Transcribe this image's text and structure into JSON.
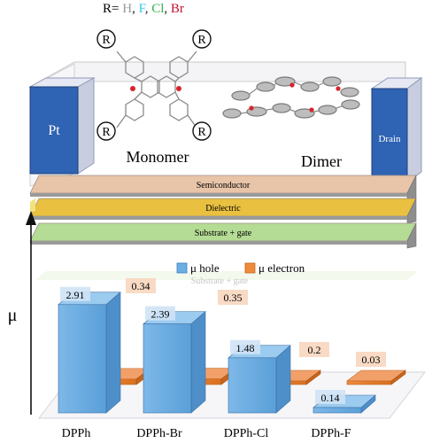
{
  "header": {
    "prefix": "R= ",
    "substituents": [
      {
        "text": "H",
        "color": "#9a9a9a"
      },
      {
        "text": ", ",
        "color": "#222222"
      },
      {
        "text": "F",
        "color": "#33c3f0"
      },
      {
        "text": ", ",
        "color": "#222222"
      },
      {
        "text": "Cl",
        "color": "#35b44a"
      },
      {
        "text": ", ",
        "color": "#222222"
      },
      {
        "text": "Br",
        "color": "#c8102e"
      }
    ]
  },
  "device": {
    "source_label": "Pt",
    "drain_label": "Drain",
    "monomer_label": "Monomer",
    "dimer_label": "Dimer",
    "r_marker": "R",
    "layers": [
      {
        "label": "Semiconductor",
        "color": "#e8c4a8"
      },
      {
        "label": "Dielectric",
        "color": "#e9c040"
      },
      {
        "label": "Substrate + gate",
        "color": "#b5dc94"
      }
    ],
    "reflection_label": "Substrate + gate"
  },
  "colors": {
    "hole": "#6aaee2",
    "electron": "#ef8a3c",
    "label_red": "#c0141e"
  },
  "chart_data": {
    "type": "bar",
    "ylabel": "μ",
    "categories": [
      "DPPh",
      "DPPh-Br",
      "DPPh-Cl",
      "DPPh-F"
    ],
    "series": [
      {
        "name": "μ hole",
        "values": [
          2.91,
          2.39,
          1.48,
          0.14
        ],
        "labels": [
          "2.91",
          "2.39",
          "1.48",
          "0.14"
        ]
      },
      {
        "name": "μ electron",
        "values": [
          0.34,
          0.35,
          0.2,
          0.03
        ],
        "labels": [
          "0.34",
          "0.35",
          "0.2",
          "0.03"
        ]
      }
    ],
    "legend_position": "top"
  }
}
